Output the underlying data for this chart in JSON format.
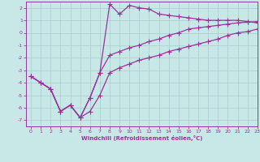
{
  "background_color": "#c8e8e8",
  "line_color": "#993399",
  "grid_color": "#aacccc",
  "xlim": [
    -0.5,
    23
  ],
  "ylim": [
    -7.5,
    2.5
  ],
  "xticks": [
    0,
    1,
    2,
    3,
    4,
    5,
    6,
    7,
    8,
    9,
    10,
    11,
    12,
    13,
    14,
    15,
    16,
    17,
    18,
    19,
    20,
    21,
    22,
    23
  ],
  "yticks": [
    -7,
    -6,
    -5,
    -4,
    -3,
    -2,
    -1,
    0,
    1,
    2
  ],
  "xlabel": "Windchill (Refroidissement éolien,°C)",
  "line1_x": [
    0,
    1,
    2,
    3,
    4,
    5,
    6,
    7,
    8,
    9,
    10,
    11,
    12,
    13,
    14,
    15,
    16,
    17,
    18,
    19,
    20,
    21,
    22,
    23
  ],
  "line1_y": [
    -3.5,
    -4.0,
    -4.5,
    -6.3,
    -5.8,
    -6.8,
    -6.3,
    -5.0,
    -3.2,
    -2.8,
    -2.5,
    -2.2,
    -2.0,
    -1.8,
    -1.5,
    -1.3,
    -1.1,
    -0.9,
    -0.7,
    -0.5,
    -0.2,
    0.0,
    0.1,
    0.3
  ],
  "line2_x": [
    0,
    1,
    2,
    3,
    4,
    5,
    6,
    7,
    8,
    9,
    10,
    11,
    12,
    13,
    14,
    15,
    16,
    17,
    18,
    19,
    20,
    21,
    22,
    23
  ],
  "line2_y": [
    -3.5,
    -4.0,
    -4.5,
    -6.3,
    -5.8,
    -6.8,
    -5.2,
    -3.2,
    -1.8,
    -1.5,
    -1.2,
    -1.0,
    -0.7,
    -0.5,
    -0.2,
    0.0,
    0.3,
    0.4,
    0.5,
    0.6,
    0.7,
    0.8,
    0.85,
    0.9
  ],
  "line3_x": [
    0,
    1,
    2,
    3,
    4,
    5,
    6,
    7,
    8,
    9,
    10,
    11,
    12,
    13,
    14,
    15,
    16,
    17,
    18,
    19,
    20,
    21,
    22,
    23
  ],
  "line3_y": [
    -3.5,
    -4.0,
    -4.5,
    -6.3,
    -5.8,
    -6.8,
    -5.2,
    -3.2,
    2.3,
    1.5,
    2.2,
    2.0,
    1.9,
    1.5,
    1.4,
    1.3,
    1.2,
    1.1,
    1.0,
    1.0,
    1.0,
    1.0,
    0.9,
    0.8
  ],
  "marker_size": 2.5,
  "line_width": 0.9,
  "tick_fontsize": 4.5,
  "xlabel_fontsize": 5.0
}
